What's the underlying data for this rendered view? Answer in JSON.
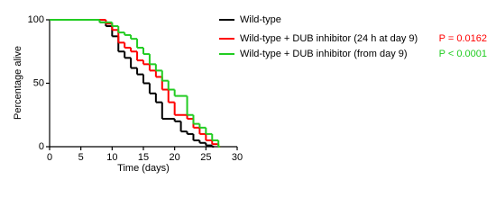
{
  "chart_data": {
    "type": "step",
    "x_label": "Time (days)",
    "y_label": "Percentage alive",
    "xlim": [
      0,
      30
    ],
    "xticks": [
      0,
      5,
      10,
      15,
      20,
      25,
      30
    ],
    "ylim": [
      0,
      100
    ],
    "yticks": [
      0,
      50,
      100
    ],
    "series": [
      {
        "name": "Wild-type",
        "color": "#000000",
        "x": [
          0,
          8,
          9,
          10,
          11,
          12,
          13,
          14,
          15,
          16,
          17,
          18,
          20,
          21,
          22,
          23,
          24,
          25,
          26
        ],
        "values": [
          100,
          98,
          95,
          87,
          75,
          70,
          62,
          57,
          50,
          42,
          35,
          22,
          20,
          12,
          10,
          5,
          3,
          1,
          0
        ]
      },
      {
        "name": "Wild-type + DUB inhibitor (24 h at day 9)",
        "color": "#ff0000",
        "p_label": "P = 0.0162",
        "x": [
          0,
          9,
          10,
          11,
          12,
          13,
          14,
          15,
          16,
          17,
          18,
          19,
          20,
          22,
          23,
          24,
          25,
          26,
          27
        ],
        "values": [
          100,
          97,
          92,
          82,
          78,
          75,
          68,
          65,
          60,
          55,
          45,
          35,
          25,
          22,
          15,
          10,
          5,
          2,
          0
        ]
      },
      {
        "name": "Wild-type + DUB inhibitor (from day 9)",
        "color": "#22cc22",
        "p_label": "P < 0.0001",
        "x": [
          0,
          8,
          10,
          11,
          12,
          13,
          14,
          15,
          16,
          17,
          18,
          19,
          20,
          22,
          23,
          24,
          25,
          26,
          27
        ],
        "values": [
          100,
          98,
          95,
          90,
          88,
          85,
          78,
          73,
          65,
          60,
          52,
          45,
          40,
          25,
          18,
          15,
          10,
          5,
          0
        ]
      }
    ]
  }
}
